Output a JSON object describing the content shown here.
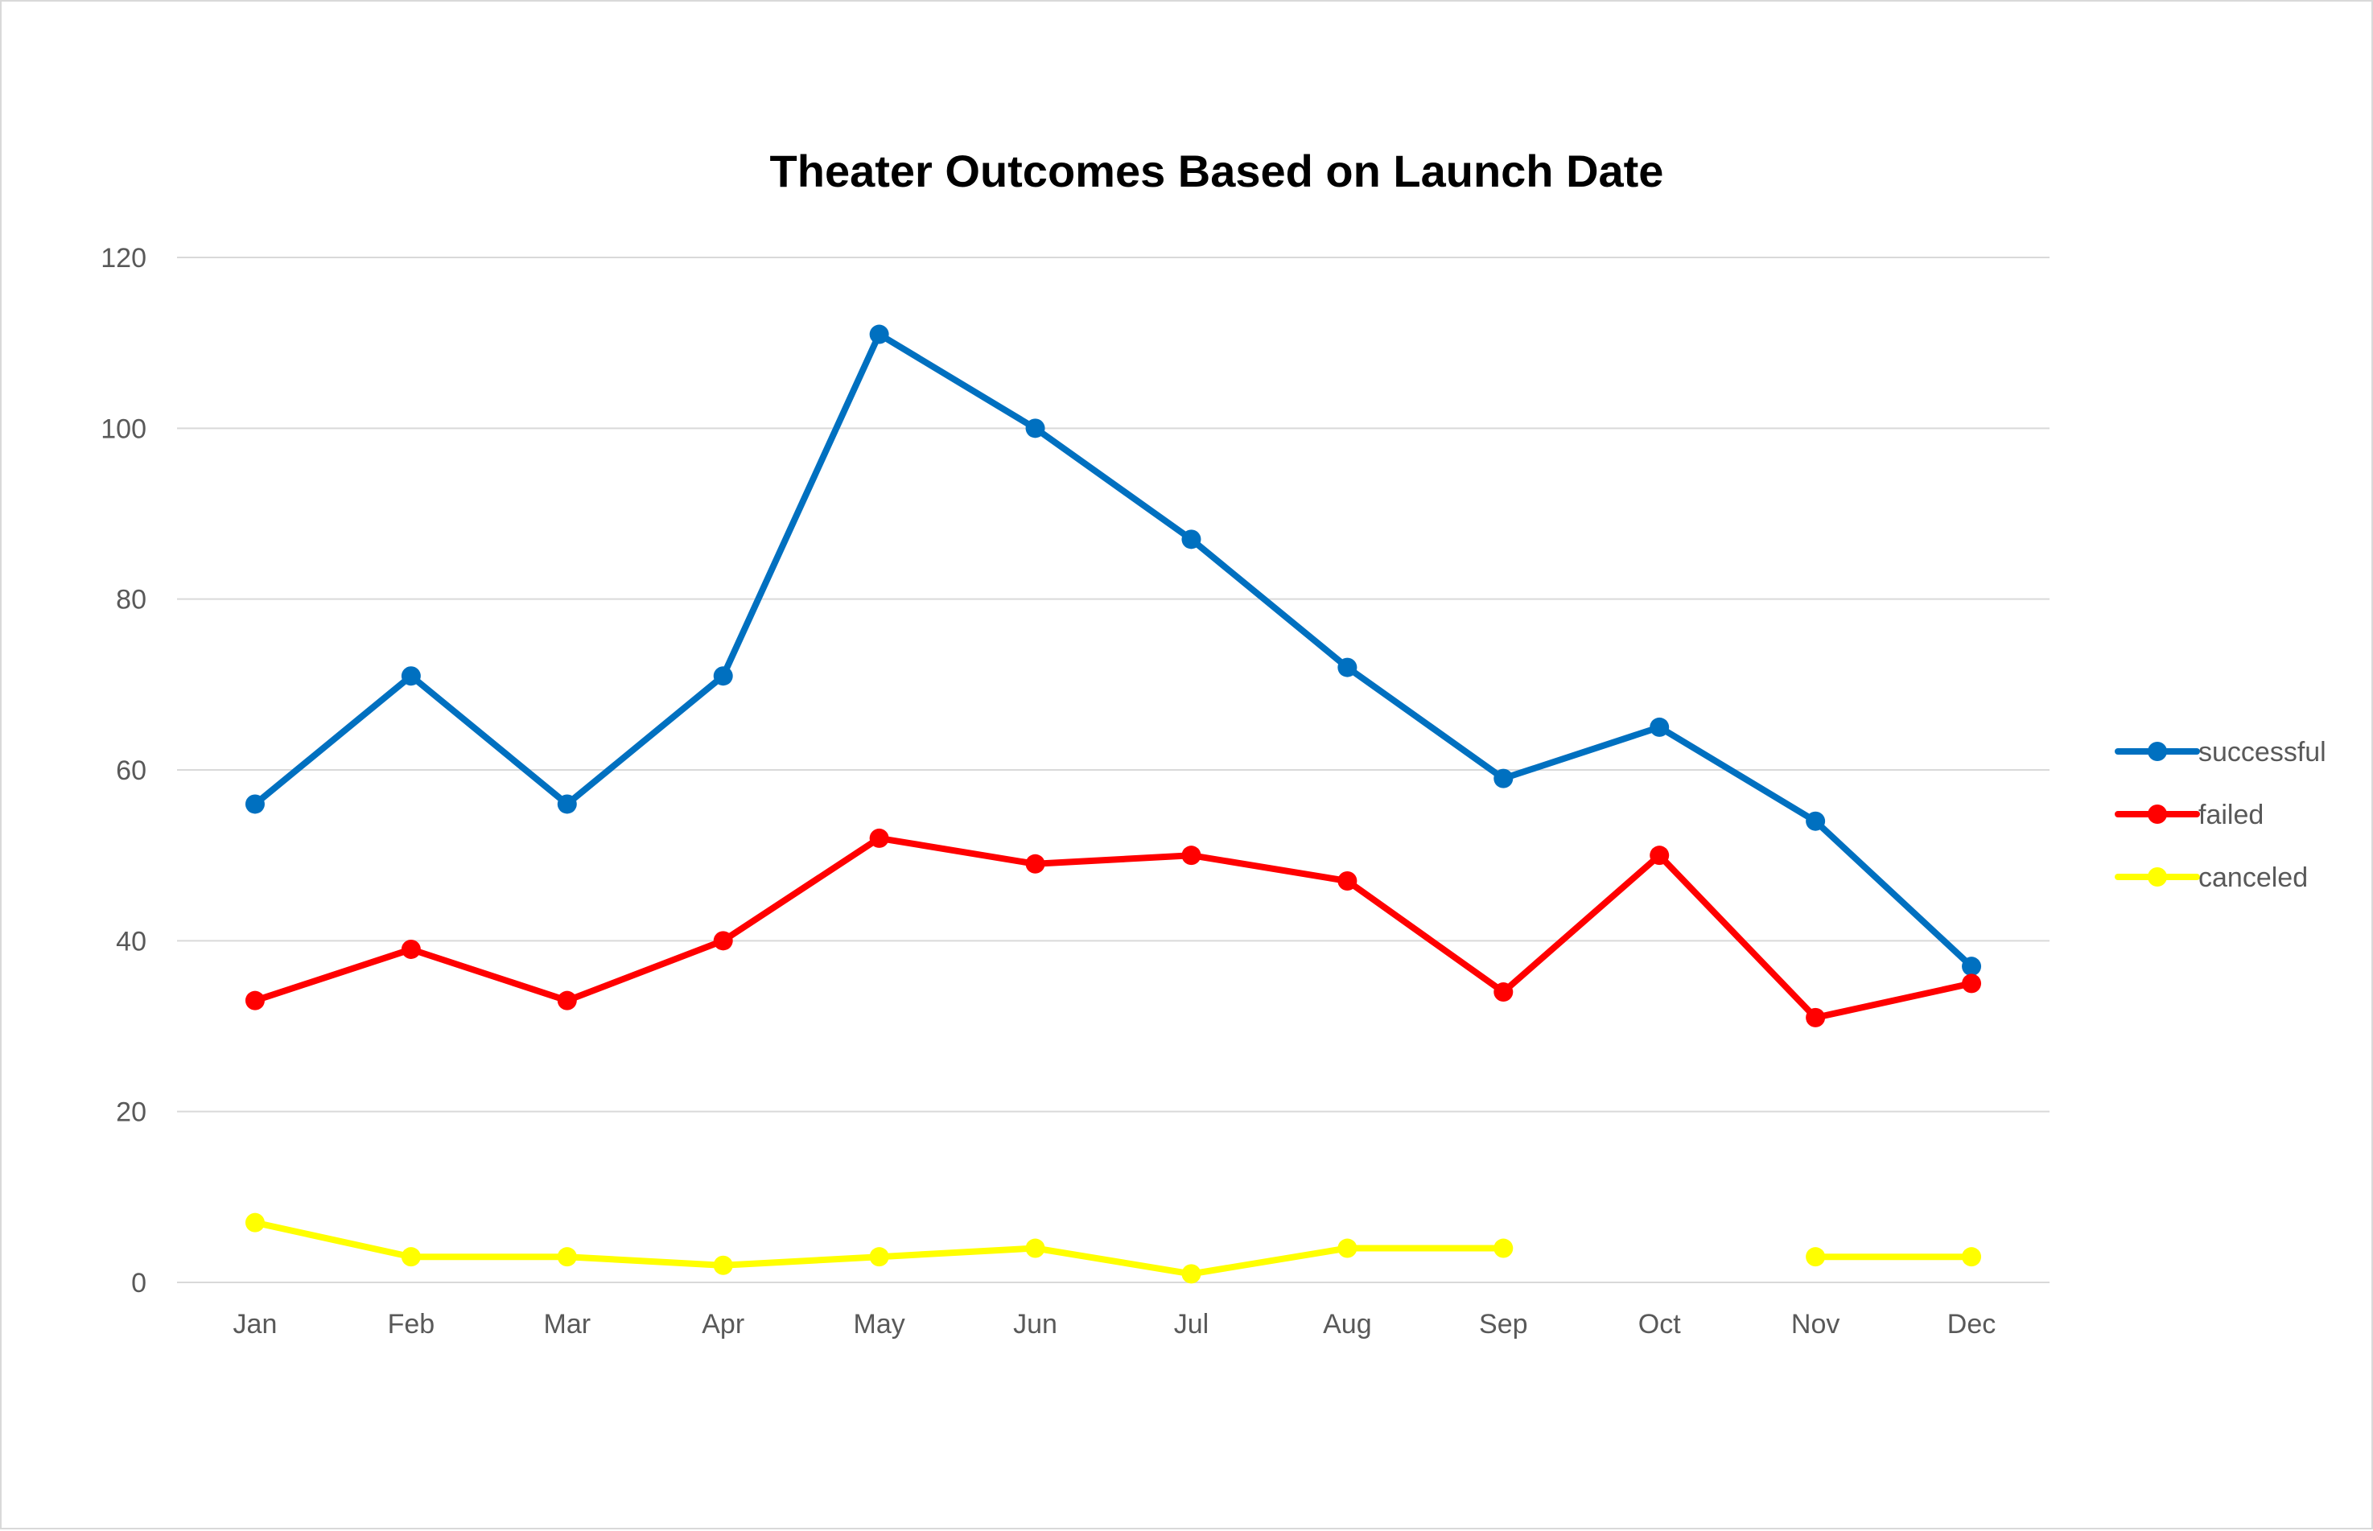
{
  "chart_data": {
    "type": "line",
    "title": "Theater Outcomes Based on Launch Date",
    "xlabel": "",
    "ylabel": "",
    "categories": [
      "Jan",
      "Feb",
      "Mar",
      "Apr",
      "May",
      "Jun",
      "Jul",
      "Aug",
      "Sep",
      "Oct",
      "Nov",
      "Dec"
    ],
    "ylim": [
      0,
      120
    ],
    "yticks": [
      0,
      20,
      40,
      60,
      80,
      100,
      120
    ],
    "grid": true,
    "legend_position": "right",
    "series": [
      {
        "name": "successful",
        "color": "#0070c0",
        "values": [
          56,
          71,
          56,
          71,
          111,
          100,
          87,
          72,
          59,
          65,
          54,
          37
        ]
      },
      {
        "name": "failed",
        "color": "#ff0000",
        "values": [
          33,
          39,
          33,
          40,
          52,
          49,
          50,
          47,
          34,
          50,
          31,
          35
        ]
      },
      {
        "name": "canceled",
        "color": "#ffff00",
        "values": [
          7,
          3,
          3,
          2,
          3,
          4,
          1,
          4,
          4,
          null,
          3,
          3
        ]
      }
    ]
  }
}
